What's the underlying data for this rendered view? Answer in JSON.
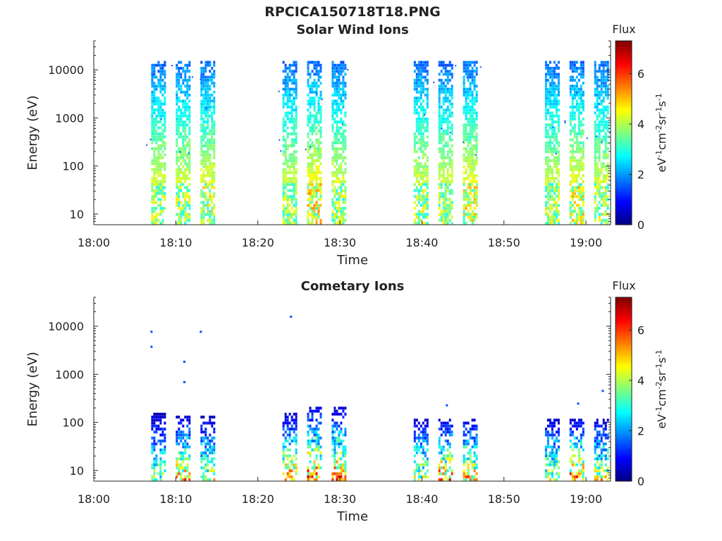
{
  "figure": {
    "filename_title": "RPCICA150718T18.PNG",
    "colors": {
      "colormap": [
        "#00007f",
        "#0000ff",
        "#007fff",
        "#00ffff",
        "#7fff7f",
        "#ffff00",
        "#ff7f00",
        "#ff0000",
        "#7f0000"
      ]
    }
  },
  "chart_data": [
    {
      "type": "heatmap",
      "title": "Solar Wind Ions",
      "xlabel": "Time",
      "ylabel": "Energy (eV)",
      "yscale": "log",
      "ylim": [
        6,
        40000
      ],
      "xlim": [
        "18:00",
        "19:03"
      ],
      "x_ticks": [
        "18:00",
        "18:10",
        "18:20",
        "18:30",
        "18:40",
        "18:50",
        "19:00"
      ],
      "y_ticks": [
        "10",
        "100",
        "1000",
        "10000"
      ],
      "colorbar": {
        "label": "Flux",
        "unit": "eV-1cm-2sr-1s-1",
        "range": [
          0,
          7.3
        ],
        "ticks": [
          "0",
          "2",
          "4",
          "6"
        ]
      },
      "bursts": [
        {
          "start": "18:07",
          "end": "18:08",
          "peak_flux": 4.6,
          "max_energy": 15000
        },
        {
          "start": "18:10",
          "end": "18:11",
          "peak_flux": 4.6,
          "max_energy": 15000
        },
        {
          "start": "18:13",
          "end": "18:14",
          "peak_flux": 4.8,
          "max_energy": 14000
        },
        {
          "start": "18:23",
          "end": "18:24",
          "peak_flux": 4.6,
          "max_energy": 14000
        },
        {
          "start": "18:26",
          "end": "18:27",
          "peak_flux": 5.2,
          "max_energy": 15000
        },
        {
          "start": "18:29",
          "end": "18:30",
          "peak_flux": 4.6,
          "max_energy": 15000
        },
        {
          "start": "18:39",
          "end": "18:40",
          "peak_flux": 4.6,
          "max_energy": 15000
        },
        {
          "start": "18:42",
          "end": "18:43",
          "peak_flux": 4.6,
          "max_energy": 14000
        },
        {
          "start": "18:45",
          "end": "18:46",
          "peak_flux": 5.0,
          "max_energy": 14000
        },
        {
          "start": "18:55",
          "end": "18:56",
          "peak_flux": 4.6,
          "max_energy": 15000
        },
        {
          "start": "18:58",
          "end": "18:59",
          "peak_flux": 5.0,
          "max_energy": 14000
        },
        {
          "start": "19:01",
          "end": "19:02",
          "peak_flux": 4.6,
          "max_energy": 14000
        }
      ]
    },
    {
      "type": "heatmap",
      "title": "Cometary Ions",
      "xlabel": "Time",
      "ylabel": "Energy (eV)",
      "yscale": "log",
      "ylim": [
        6,
        40000
      ],
      "xlim": [
        "18:00",
        "19:03"
      ],
      "x_ticks": [
        "18:00",
        "18:10",
        "18:20",
        "18:30",
        "18:40",
        "18:50",
        "19:00"
      ],
      "y_ticks": [
        "10",
        "100",
        "1000",
        "10000"
      ],
      "colorbar": {
        "label": "Flux",
        "unit": "eV-1cm-2sr-1s-1",
        "range": [
          0,
          7.3
        ],
        "ticks": [
          "0",
          "2",
          "4",
          "6"
        ]
      },
      "bursts": [
        {
          "start": "18:07",
          "end": "18:08",
          "peak_flux": 4.6,
          "max_energy": 150
        },
        {
          "start": "18:10",
          "end": "18:11",
          "peak_flux": 6.2,
          "max_energy": 130
        },
        {
          "start": "18:13",
          "end": "18:14",
          "peak_flux": 5.4,
          "max_energy": 130
        },
        {
          "start": "18:23",
          "end": "18:24",
          "peak_flux": 6.4,
          "max_energy": 150
        },
        {
          "start": "18:26",
          "end": "18:27",
          "peak_flux": 7.0,
          "max_energy": 200
        },
        {
          "start": "18:29",
          "end": "18:30",
          "peak_flux": 6.6,
          "max_energy": 200
        },
        {
          "start": "18:39",
          "end": "18:40",
          "peak_flux": 5.4,
          "max_energy": 110
        },
        {
          "start": "18:42",
          "end": "18:43",
          "peak_flux": 6.8,
          "max_energy": 110
        },
        {
          "start": "18:45",
          "end": "18:46",
          "peak_flux": 6.4,
          "max_energy": 110
        },
        {
          "start": "18:55",
          "end": "18:56",
          "peak_flux": 5.4,
          "max_energy": 120
        },
        {
          "start": "18:58",
          "end": "18:59",
          "peak_flux": 6.8,
          "max_energy": 110
        },
        {
          "start": "19:01",
          "end": "19:02",
          "peak_flux": 5.6,
          "max_energy": 120
        }
      ],
      "isolated_points": [
        {
          "time": "18:07",
          "energy": 7800,
          "flux": 1.5
        },
        {
          "time": "18:07",
          "energy": 3800,
          "flux": 1.5
        },
        {
          "time": "18:11",
          "energy": 1850,
          "flux": 1.5
        },
        {
          "time": "18:11",
          "energy": 700,
          "flux": 1.5
        },
        {
          "time": "18:13",
          "energy": 7800,
          "flux": 1.5
        },
        {
          "time": "18:24",
          "energy": 16000,
          "flux": 1.5
        },
        {
          "time": "18:43",
          "energy": 230,
          "flux": 1.5
        },
        {
          "time": "18:59",
          "energy": 250,
          "flux": 1.5
        },
        {
          "time": "19:02",
          "energy": 460,
          "flux": 1.5
        }
      ]
    }
  ]
}
